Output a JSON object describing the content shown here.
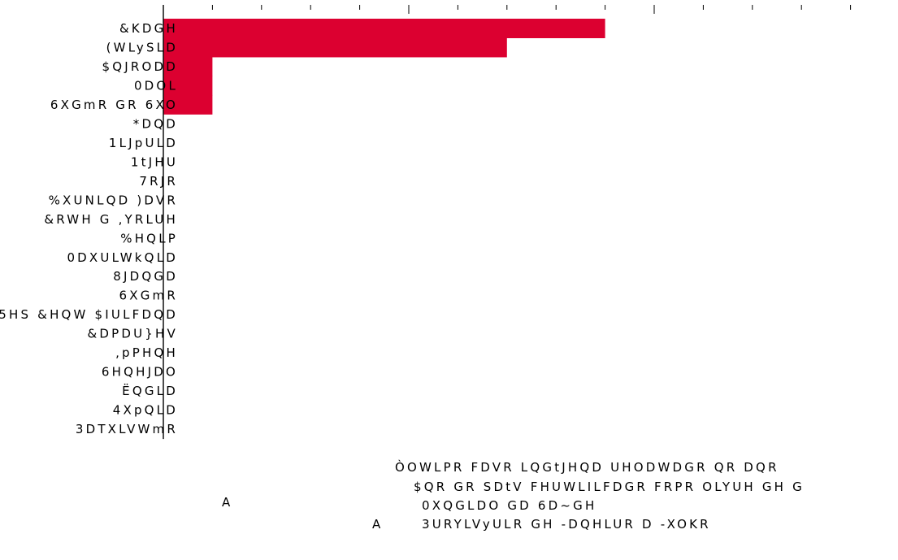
{
  "chart_data": {
    "type": "bar",
    "orientation": "horizontal",
    "categories": [
      "&KDGH",
      "(WLySLD",
      "$QJRODD",
      "0DOL",
      "6XGmR GR 6XO",
      "*DQD",
      "1LJpULD",
      "1tJHU",
      "7RJR",
      "%XUNLQD )DVR",
      "&RWH G ,YRLUH",
      "%HQLP",
      "0DXULWkQLD",
      "8JDQGD",
      "6XGmR",
      "5HS &HQW $IULFDQD",
      "&DPDU}HV",
      ",pPHQH",
      "6HQHJDO",
      "ËQGLD",
      "4XpQLD",
      "3DTXLVWmR"
    ],
    "values": [
      9,
      7,
      1,
      1,
      1,
      0,
      0,
      0,
      0,
      0,
      0,
      0,
      0,
      0,
      0,
      0,
      0,
      0,
      0,
      0,
      0,
      0
    ],
    "xlim": [
      0,
      15
    ],
    "x_major_ticks": [
      0,
      5,
      10,
      15
    ],
    "x_minor_tick_step": 1,
    "bar_color": "#dc0030",
    "axis_color": "#000000",
    "grid": false
  },
  "annotations": {
    "note_lines": [
      "ÒOWLPR FDVR LQGtJHQD UHODWDGR QR DQR",
      "$QR GR SDtV FHUWLILFDGR FRPR OLYUH GH G",
      "0XQGLDO GD 6D~GH",
      "3URYLVyULR GH -DQHLUR D -XOKR"
    ],
    "marker_india": "A",
    "marker_note": "A"
  }
}
